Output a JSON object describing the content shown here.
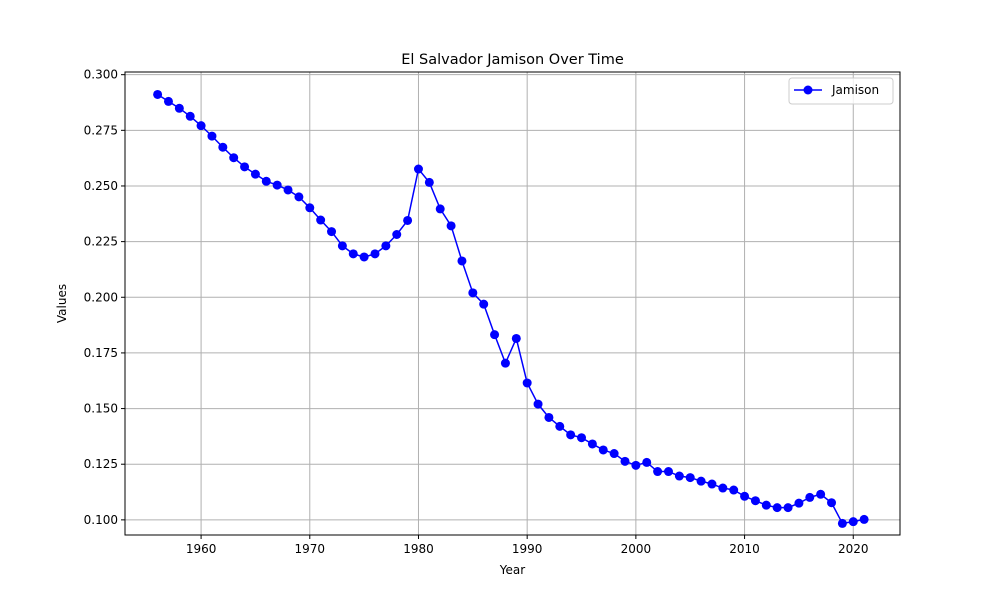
{
  "chart_data": {
    "type": "line",
    "title": "El Salvador Jamison Over Time",
    "xlabel": "Year",
    "ylabel": "Values",
    "xlim": [
      1953,
      2024.3
    ],
    "ylim": [
      0.0932,
      0.3012
    ],
    "xticks": [
      1960,
      1970,
      1980,
      1990,
      2000,
      2010,
      2020
    ],
    "xtick_labels": [
      "1960",
      "1970",
      "1980",
      "1990",
      "2000",
      "2010",
      "2020"
    ],
    "yticks": [
      0.1,
      0.125,
      0.15,
      0.175,
      0.2,
      0.225,
      0.25,
      0.275,
      0.3
    ],
    "ytick_labels": [
      "0.100",
      "0.125",
      "0.150",
      "0.175",
      "0.200",
      "0.225",
      "0.250",
      "0.275",
      "0.300"
    ],
    "grid": true,
    "legend_position": "top-right",
    "colors": {
      "series": "#0000ff",
      "grid": "#b0b0b0",
      "axes": "#000000"
    },
    "series": [
      {
        "name": "Jamison",
        "marker": "circle",
        "x": [
          1956,
          1957,
          1958,
          1959,
          1960,
          1961,
          1962,
          1963,
          1964,
          1965,
          1966,
          1967,
          1968,
          1969,
          1970,
          1971,
          1972,
          1973,
          1974,
          1975,
          1976,
          1977,
          1978,
          1979,
          1980,
          1981,
          1982,
          1983,
          1984,
          1985,
          1986,
          1987,
          1988,
          1989,
          1990,
          1991,
          1992,
          1993,
          1994,
          1995,
          1996,
          1997,
          1998,
          1999,
          2000,
          2001,
          2002,
          2003,
          2004,
          2005,
          2006,
          2007,
          2008,
          2009,
          2010,
          2011,
          2012,
          2013,
          2014,
          2015,
          2016,
          2017,
          2018,
          2019,
          2020,
          2021
        ],
        "values": [
          0.2911,
          0.288,
          0.2849,
          0.2813,
          0.2771,
          0.2724,
          0.2674,
          0.2627,
          0.2586,
          0.2553,
          0.2521,
          0.2504,
          0.2482,
          0.2451,
          0.2402,
          0.2347,
          0.2295,
          0.2231,
          0.2195,
          0.2181,
          0.2195,
          0.2231,
          0.2282,
          0.2345,
          0.2576,
          0.2516,
          0.2397,
          0.2321,
          0.2163,
          0.202,
          0.1969,
          0.1832,
          0.1704,
          0.1815,
          0.1615,
          0.152,
          0.146,
          0.142,
          0.1382,
          0.1369,
          0.1341,
          0.1314,
          0.1298,
          0.1263,
          0.1245,
          0.1258,
          0.1217,
          0.1217,
          0.1197,
          0.119,
          0.1174,
          0.1161,
          0.1143,
          0.1134,
          0.1106,
          0.1086,
          0.1066,
          0.1055,
          0.1055,
          0.1075,
          0.1101,
          0.1115,
          0.1077,
          0.0984,
          0.0992,
          0.1002
        ]
      }
    ]
  }
}
